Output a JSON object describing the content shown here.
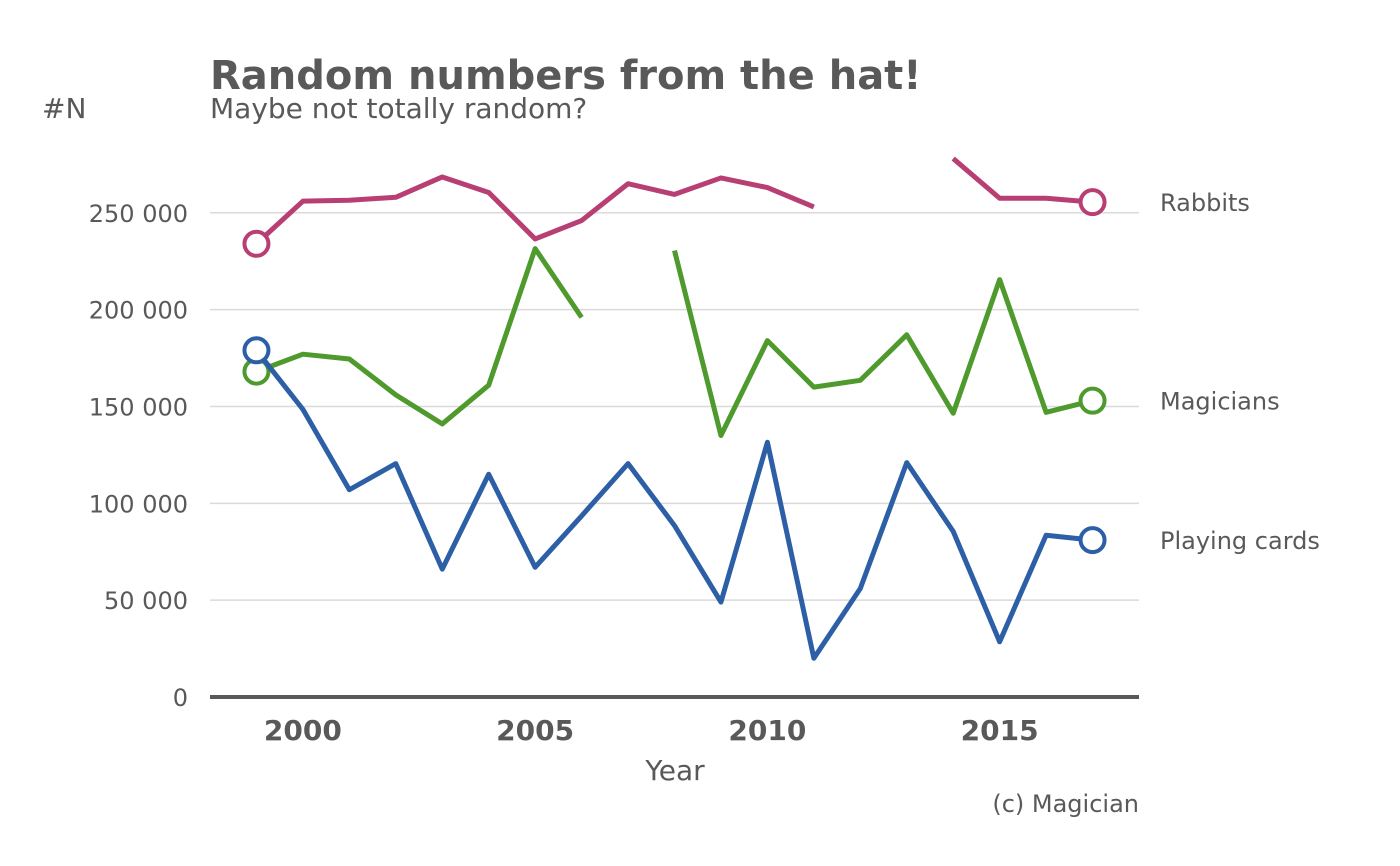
{
  "chart_data": {
    "type": "line",
    "title": "Random numbers from the hat!",
    "subtitle": "Maybe not totally random?",
    "xlabel": "Year",
    "ylabel": "#N",
    "caption": "(c) Magician",
    "xlim": [
      1998,
      2018
    ],
    "ylim": [
      0,
      285000
    ],
    "x_ticks": [
      2000,
      2005,
      2010,
      2015
    ],
    "x_tick_labels": [
      "2000",
      "2005",
      "2010",
      "2015"
    ],
    "y_ticks": [
      0,
      50000,
      100000,
      150000,
      200000,
      250000
    ],
    "y_tick_labels": [
      "0",
      "50 000",
      "100 000",
      "150 000",
      "200 000",
      "250 000"
    ],
    "grid": true,
    "legend": "direct labels at line ends (right)",
    "x": [
      1999,
      2000,
      2001,
      2002,
      2003,
      2004,
      2005,
      2006,
      2007,
      2008,
      2009,
      2010,
      2011,
      2012,
      2013,
      2014,
      2015,
      2016,
      2017
    ],
    "series": [
      {
        "name": "Rabbits",
        "color": "#b83f73",
        "values": [
          234000,
          256000,
          256500,
          258000,
          268500,
          260500,
          236500,
          246000,
          265000,
          259500,
          268000,
          263000,
          253000,
          null,
          null,
          278000,
          257500,
          257500,
          255500
        ]
      },
      {
        "name": "Magicians",
        "color": "#4e9a2c",
        "values": [
          168000,
          177000,
          174500,
          156000,
          141000,
          161000,
          231500,
          196000,
          null,
          230500,
          135000,
          184000,
          160000,
          163500,
          187000,
          146500,
          215500,
          147000,
          153000
        ]
      },
      {
        "name": "Playing cards",
        "color": "#2c5fa5",
        "values": [
          179000,
          148500,
          107000,
          120500,
          66000,
          115000,
          67000,
          93500,
          120500,
          88500,
          49000,
          131500,
          20000,
          56000,
          121000,
          85500,
          28500,
          83500,
          81000
        ]
      }
    ]
  }
}
